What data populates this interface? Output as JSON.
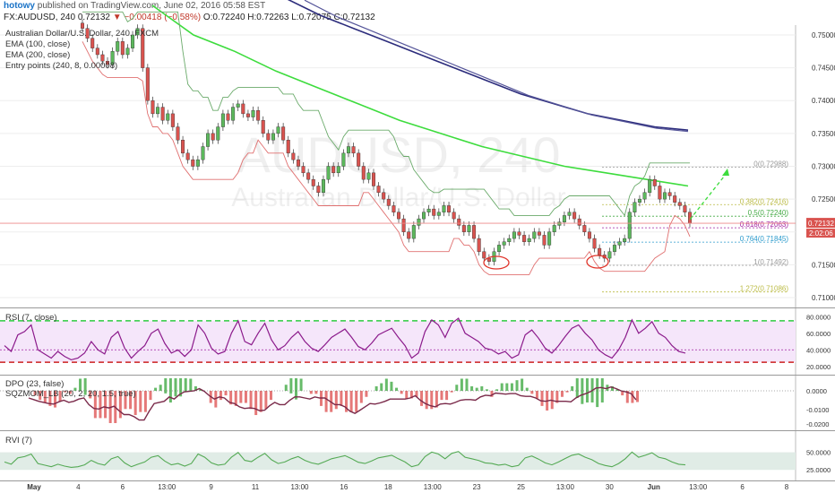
{
  "header": {
    "user": "hotowy",
    "published": "published on TradingView.com, June 02, 2016 05:58 EST",
    "symbol": "FX:AUDUSD, 240",
    "last": "0.72132",
    "change": "▼ −0.00418 (−0.58%)",
    "ohlc": "O:0.72240 H:0.72263 L:0.72075 C:0.72132"
  },
  "legend": {
    "title": "Australian Dollar/U.S. Dollar, 240, FXCM",
    "ema100": "EMA (100, close)",
    "ema200": "EMA (200, close)",
    "entry": "Entry points (240, 8, 0.00008)"
  },
  "watermark": {
    "symbol": "AUDUSD, 240",
    "name": "Australian Dollar/U.S. Dollar"
  },
  "price_axis": {
    "ticks": [
      "0.75000",
      "0.74500",
      "0.74000",
      "0.73500",
      "0.73000",
      "0.72500",
      "0.72000",
      "0.71500",
      "0.71000"
    ],
    "current_price": "0.72132",
    "countdown": "2:02:06"
  },
  "fib_labels": [
    "0(0.72988)",
    "0.382(0.72416)",
    "0.5(0.72240)",
    "0.618(0.72063)",
    "0.764(0.71845)",
    "1(0.71492)",
    "1.272(0.71086)"
  ],
  "rsi": {
    "label": "RSI (7, close)",
    "ticks": [
      "80.0000",
      "60.0000",
      "40.0000",
      "20.0000"
    ]
  },
  "dpo": {
    "label": "DPO (23, false)",
    "sub": "SQZMOM_LB (20, 2, 20, 1.5, true)",
    "ticks": [
      "0.0000",
      "-0.0100",
      "-0.0200"
    ]
  },
  "rvi": {
    "label": "RVI (7)",
    "ticks": [
      "50.0000",
      "25.0000"
    ]
  },
  "time_axis": [
    "May",
    "4",
    "6",
    "13:00",
    "9",
    "11",
    "13:00",
    "16",
    "18",
    "13:00",
    "23",
    "25",
    "13:00",
    "30",
    "Jun",
    "13:00",
    "6",
    "8"
  ],
  "colors": {
    "up": "#5cb85c",
    "down": "#d9534f",
    "ema100": "#3ddc3d",
    "ema200": "#2c2c7c",
    "rsi": "#8b1a8b"
  },
  "chart_data": {
    "type": "line",
    "title": "Australian Dollar/U.S. Dollar, 240, FXCM",
    "ylim": [
      0.7085,
      0.7515
    ],
    "close": [
      0.751,
      0.7495,
      0.748,
      0.747,
      0.746,
      0.7455,
      0.7475,
      0.749,
      0.747,
      0.748,
      0.75,
      0.751,
      0.745,
      0.74,
      0.738,
      0.739,
      0.737,
      0.738,
      0.736,
      0.734,
      0.732,
      0.731,
      0.73,
      0.731,
      0.733,
      0.735,
      0.734,
      0.736,
      0.738,
      0.737,
      0.739,
      0.7395,
      0.738,
      0.7375,
      0.7385,
      0.737,
      0.735,
      0.734,
      0.735,
      0.736,
      0.734,
      0.732,
      0.731,
      0.73,
      0.729,
      0.728,
      0.727,
      0.726,
      0.728,
      0.73,
      0.729,
      0.73,
      0.732,
      0.733,
      0.732,
      0.73,
      0.728,
      0.729,
      0.727,
      0.726,
      0.725,
      0.724,
      0.723,
      0.722,
      0.72,
      0.719,
      0.721,
      0.722,
      0.723,
      0.7235,
      0.7225,
      0.723,
      0.724,
      0.723,
      0.722,
      0.721,
      0.72,
      0.721,
      0.719,
      0.717,
      0.716,
      0.7155,
      0.717,
      0.718,
      0.7185,
      0.719,
      0.72,
      0.7195,
      0.7185,
      0.719,
      0.72,
      0.7195,
      0.718,
      0.72,
      0.721,
      0.7215,
      0.7225,
      0.723,
      0.722,
      0.721,
      0.72,
      0.719,
      0.7175,
      0.7165,
      0.716,
      0.717,
      0.718,
      0.7185,
      0.719,
      0.723,
      0.7245,
      0.725,
      0.726,
      0.728,
      0.727,
      0.725,
      0.726,
      0.7255,
      0.7245,
      0.724,
      0.723,
      0.7213
    ],
    "ema100": [
      0.7545,
      0.75,
      0.7475,
      0.7445,
      0.742,
      0.7395,
      0.737,
      0.735,
      0.733,
      0.7315,
      0.73,
      0.729,
      0.728,
      0.727
    ],
    "ema200": [
      0.7555,
      0.753,
      0.751,
      0.749,
      0.747,
      0.745,
      0.743,
      0.741,
      0.7395,
      0.738,
      0.737,
      0.736,
      0.7355
    ],
    "fib_levels": [
      0.72988,
      0.72416,
      0.7224,
      0.72063,
      0.71845,
      0.71492,
      0.71086
    ],
    "rsi_range": [
      10,
      90
    ],
    "rsi": [
      45,
      38,
      58,
      62,
      70,
      40,
      35,
      30,
      38,
      32,
      28,
      30,
      36,
      50,
      40,
      35,
      55,
      62,
      42,
      30,
      38,
      45,
      60,
      65,
      48,
      36,
      40,
      32,
      40,
      70,
      60,
      42,
      35,
      38,
      60,
      75,
      50,
      46,
      60,
      72,
      52,
      40,
      45,
      55,
      62,
      50,
      42,
      38,
      46,
      55,
      60,
      65,
      55,
      44,
      40,
      48,
      58,
      62,
      66,
      55,
      45,
      30,
      36,
      62,
      76,
      70,
      55,
      72,
      78,
      60,
      55,
      50,
      42,
      40,
      35,
      38,
      30,
      34,
      58,
      64,
      54,
      42,
      36,
      45,
      56,
      66,
      70,
      60,
      52,
      40,
      34,
      30,
      40,
      55,
      76,
      60,
      66,
      74,
      60,
      55,
      45,
      38,
      36
    ]
  }
}
